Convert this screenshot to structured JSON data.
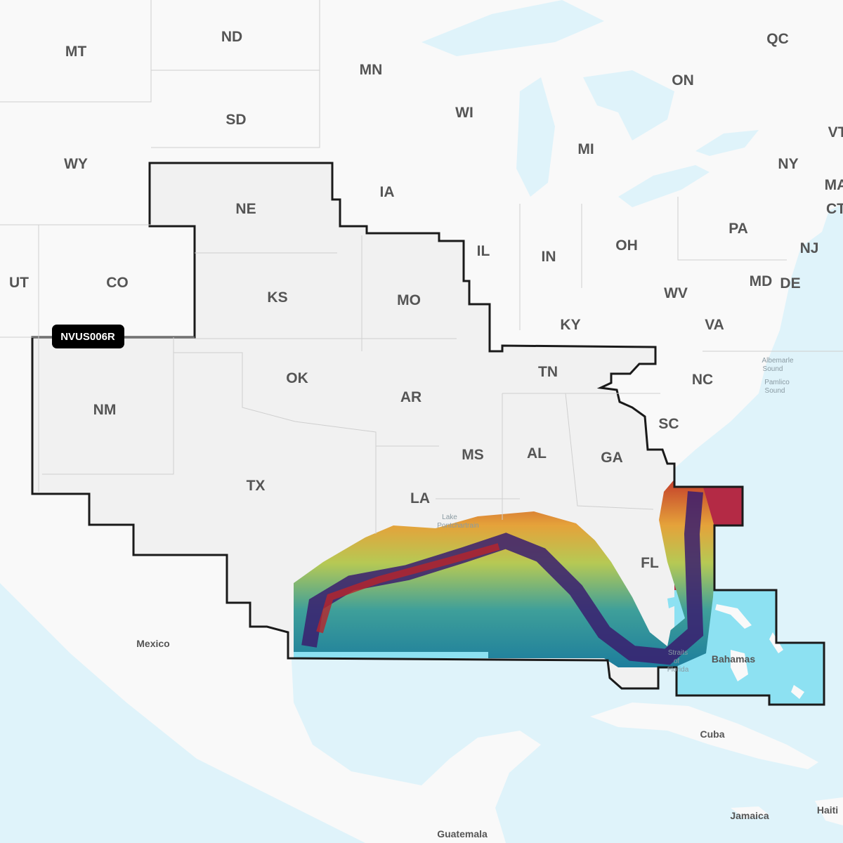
{
  "chart_badge": {
    "label": "NVUS006R",
    "color": "#000000"
  },
  "colors": {
    "water": "#dff3fa",
    "land": "#f9f9f9",
    "coverage": "#f1f1f1",
    "boundary": "#1a1a1a",
    "bahamas_coverage": "#8de1f2"
  },
  "states": [
    "MT",
    "ND",
    "MN",
    "WI",
    "ON",
    "QC",
    "SD",
    "WY",
    "MI",
    "NY",
    "IA",
    "NE",
    "PA",
    "IL",
    "IN",
    "OH",
    "NJ",
    "UT",
    "CO",
    "KS",
    "MO",
    "MD",
    "DE",
    "WV",
    "VA",
    "KY",
    "TN",
    "NC",
    "OK",
    "AR",
    "NM",
    "SC",
    "MS",
    "AL",
    "GA",
    "TX",
    "LA",
    "FL",
    "VT",
    "MA",
    "CT"
  ],
  "countries": [
    "Mexico",
    "Cuba",
    "Bahamas",
    "Guatemala",
    "Jamaica",
    "Haiti"
  ],
  "water_labels": [
    "Albemarle",
    "Sound",
    "Pamlico",
    "Sound",
    "Lake",
    "Pontchartrain",
    "Straits",
    "of",
    "Florida"
  ]
}
